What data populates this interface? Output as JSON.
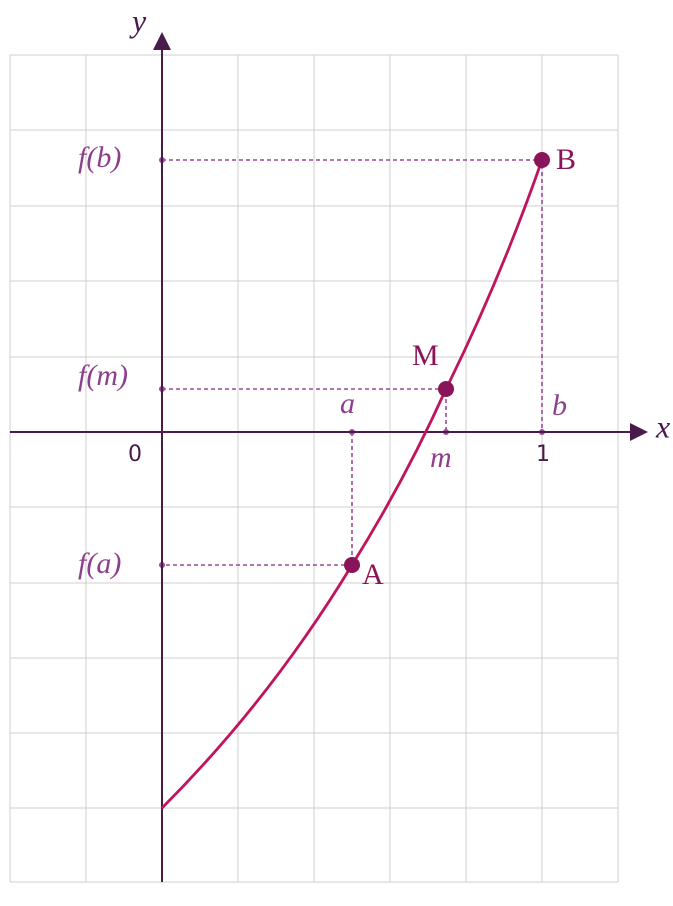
{
  "axes": {
    "x_label": "x",
    "y_label": "y",
    "origin": "0",
    "one": "1"
  },
  "points": {
    "A": "A",
    "B": "B",
    "M": "M"
  },
  "x_labels": {
    "a": "a",
    "b": "b",
    "m": "m"
  },
  "y_labels": {
    "fa": "f(a)",
    "fb": "f(b)",
    "fm": "f(m)"
  }
}
